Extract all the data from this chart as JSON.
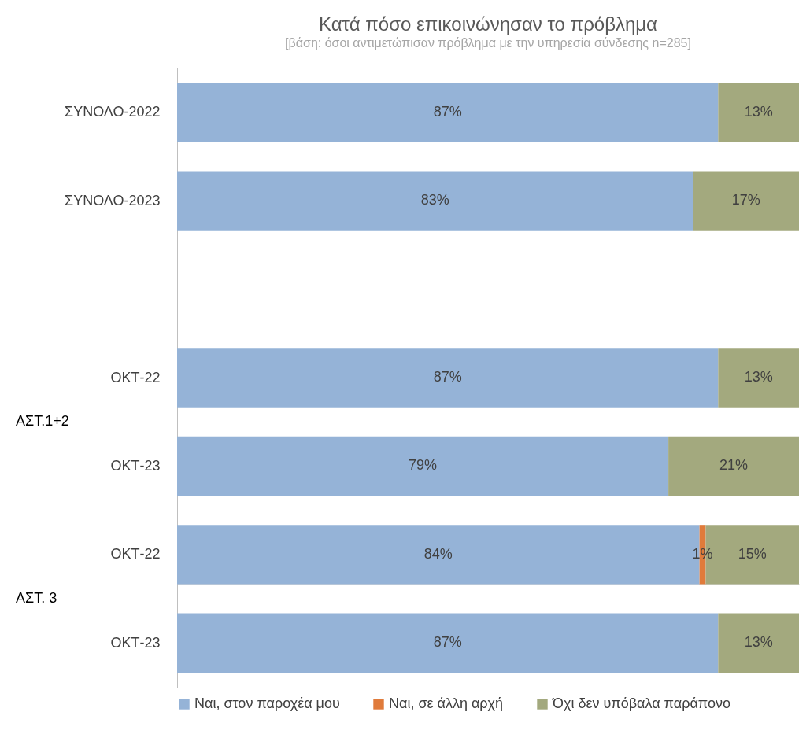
{
  "chart_data": {
    "type": "bar",
    "orientation": "horizontal",
    "stacked": true,
    "title": "Κατά πόσο επικοινώνησαν το πρόβλημα",
    "subtitle": "[βάση: όσοι αντιμετώπισαν πρόβλημα με την υπηρεσία σύνδεσης n=285]",
    "categories": [
      "ΣΥΝΟΛΟ-2022",
      "ΣΥΝΟΛΟ-2023",
      null,
      "ΟΚΤ-22",
      "ΟΚΤ-23",
      "ΟΚΤ-22",
      "ΟΚΤ-23"
    ],
    "series": [
      {
        "name": "Ναι, στον παροχέα μου",
        "color": "#95b3d7",
        "values": [
          87,
          83,
          null,
          87,
          79,
          84,
          87
        ],
        "value_labels": [
          "87%",
          "83%",
          null,
          "87%",
          "79%",
          "84%",
          "87%"
        ]
      },
      {
        "name": "Ναι, σε άλλη αρχή",
        "color": "#e07b3b",
        "values": [
          null,
          null,
          null,
          null,
          null,
          1,
          null
        ],
        "value_labels": [
          null,
          null,
          null,
          null,
          null,
          "1%",
          null
        ]
      },
      {
        "name": "Όχι δεν υπόβαλα παράπονο",
        "color": "#a3a97e",
        "values": [
          13,
          17,
          null,
          13,
          21,
          15,
          13
        ],
        "value_labels": [
          "13%",
          "17%",
          null,
          "13%",
          "21%",
          "15%",
          "13%"
        ]
      }
    ],
    "xlim": [
      0,
      100
    ],
    "annotations": [
      "ΑΣΤ.1+2",
      "ΑΣΤ. 3"
    ],
    "grid": "y",
    "legend": "bottom"
  }
}
